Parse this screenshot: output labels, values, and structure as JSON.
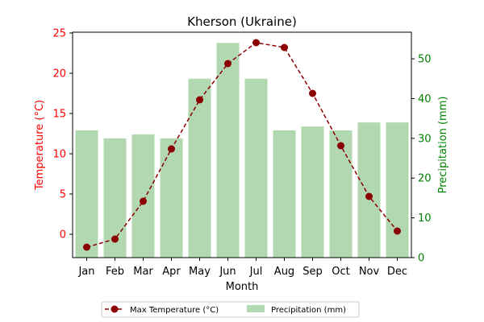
{
  "chart_data": {
    "type": "bar",
    "title": "Kherson (Ukraine)",
    "xlabel": "Month",
    "ylabel_left": "Temperature (°C)",
    "ylabel_right": "Precipitation (mm)",
    "categories": [
      "Jan",
      "Feb",
      "Mar",
      "Apr",
      "May",
      "Jun",
      "Jul",
      "Aug",
      "Sep",
      "Oct",
      "Nov",
      "Dec"
    ],
    "ylim_left": [
      -2.9,
      25.1
    ],
    "ylim_right": [
      0,
      56.7
    ],
    "yticks_left": [
      0,
      5,
      10,
      15,
      20,
      25
    ],
    "yticks_right": [
      0,
      10,
      20,
      30,
      40,
      50
    ],
    "series": [
      {
        "name": "Max Temperature (°C)",
        "type": "line",
        "axis": "left",
        "values": [
          -1.6,
          -0.6,
          4.1,
          10.6,
          16.7,
          21.2,
          23.8,
          23.2,
          17.5,
          11.0,
          4.7,
          0.4
        ]
      },
      {
        "name": "Precipitation (mm)",
        "type": "bar",
        "axis": "right",
        "values": [
          32,
          30,
          31,
          30,
          45,
          54,
          45,
          32,
          33,
          32,
          34,
          34
        ]
      }
    ],
    "legend": {
      "placement": "bottom-center",
      "entries": [
        "Max Temperature (°C)",
        "Precipitation (mm)"
      ]
    },
    "grid": false,
    "colors": {
      "line": "#8b0000",
      "bar": "#b2d8b2",
      "left_axis": "#ff0000",
      "right_axis": "#008000"
    }
  }
}
